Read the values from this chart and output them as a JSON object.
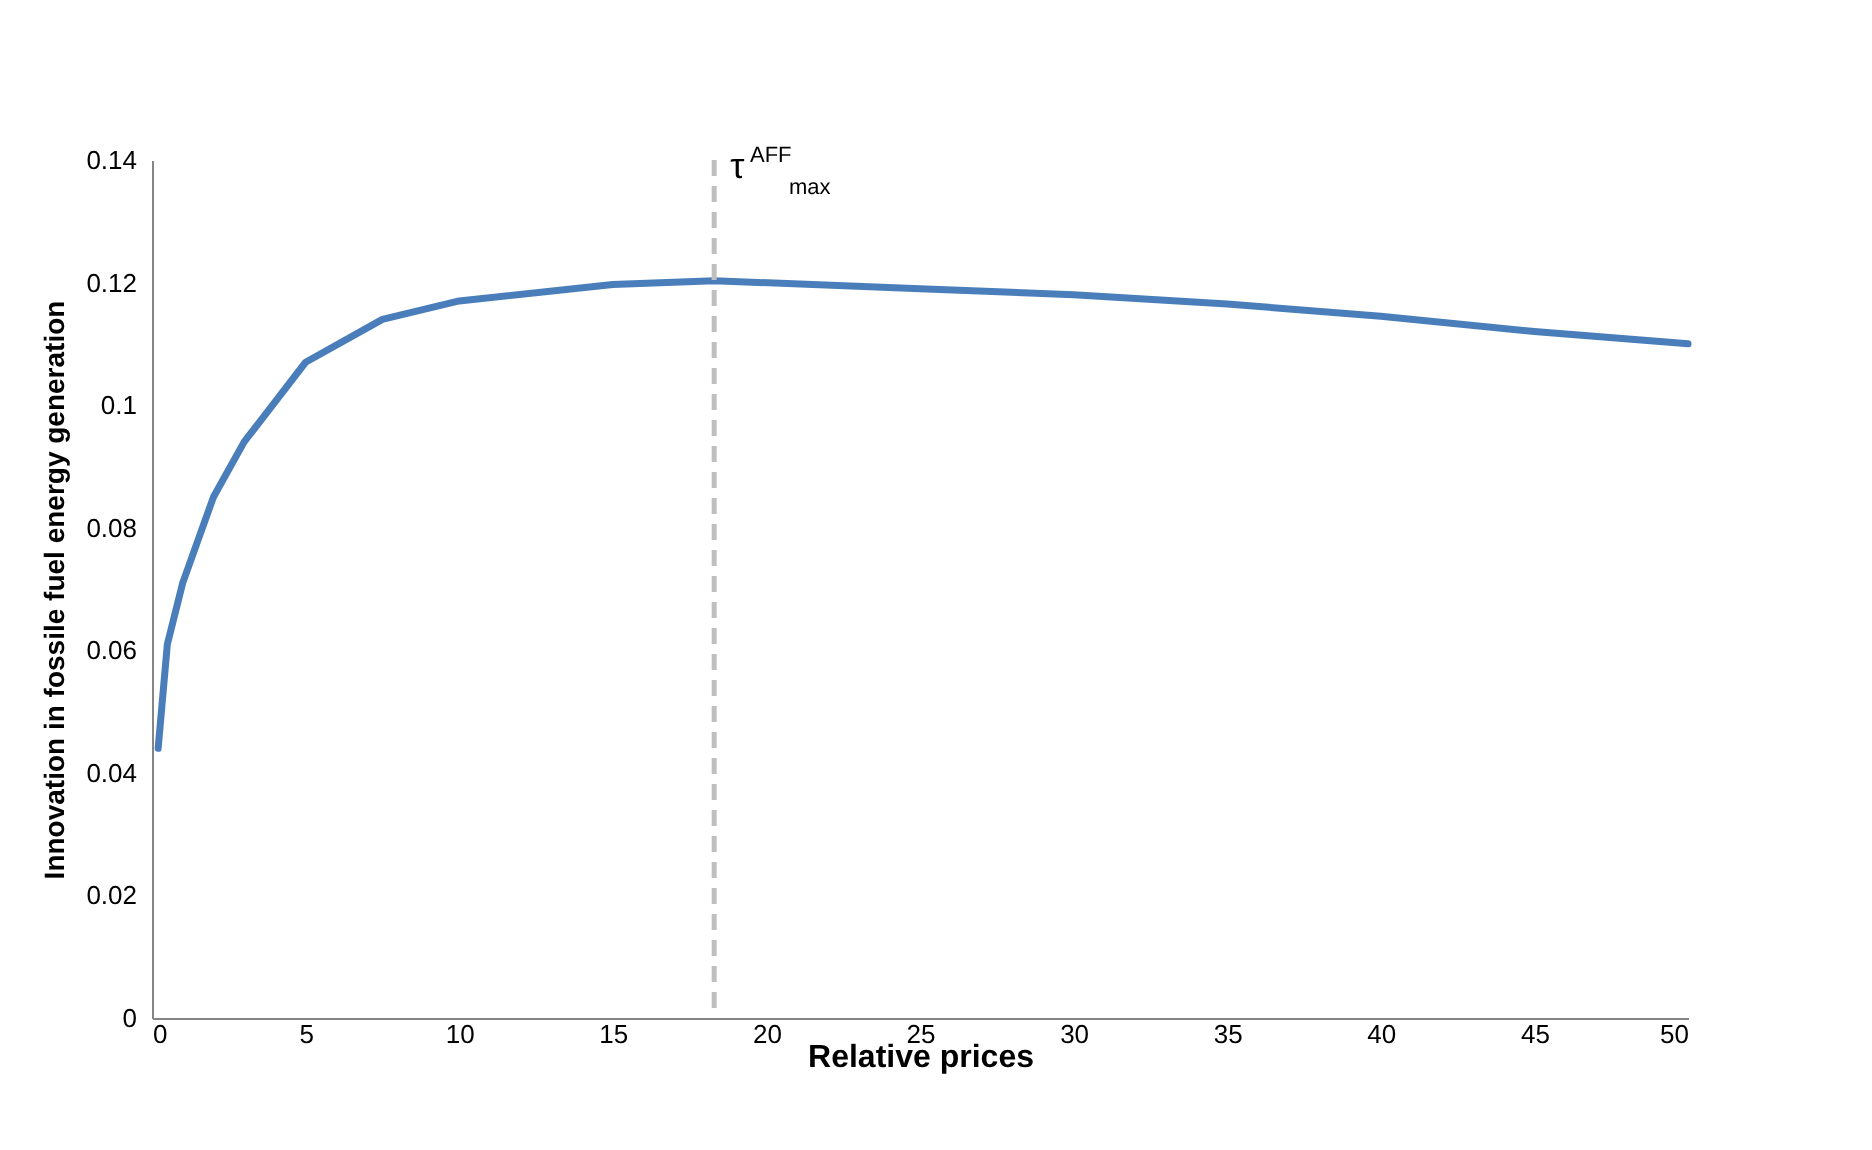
{
  "chart_data": {
    "type": "line",
    "xlabel": "Relative prices",
    "ylabel": "Innovation in fossile fuel energy generation",
    "x": [
      0.2,
      0.5,
      1,
      2,
      3,
      5,
      7.5,
      10,
      15,
      18.3,
      25,
      30,
      35,
      40,
      45,
      50
    ],
    "series": [
      {
        "color": "#4a7ebb",
        "values": [
          0.044,
          0.061,
          0.071,
          0.085,
          0.094,
          0.107,
          0.114,
          0.117,
          0.1197,
          0.1203,
          0.119,
          0.118,
          0.1165,
          0.1145,
          0.112,
          0.11
        ]
      }
    ],
    "xlim": [
      0,
      50
    ],
    "xticks": [
      0,
      5,
      10,
      15,
      20,
      25,
      30,
      35,
      40,
      45,
      50
    ],
    "ylim": [
      0,
      0.14
    ],
    "yticks": [
      0,
      0.02,
      0.04,
      0.06,
      0.08,
      0.1,
      0.12,
      0.14
    ],
    "grid": false,
    "marker": "none",
    "line_style": "solid",
    "ref_lines": [
      {
        "axis": "x",
        "value": 18.3,
        "label": "τ$^{AFF}$$_{max}$",
        "color": "#bfbfbf",
        "line_style": "dashed"
      }
    ]
  }
}
